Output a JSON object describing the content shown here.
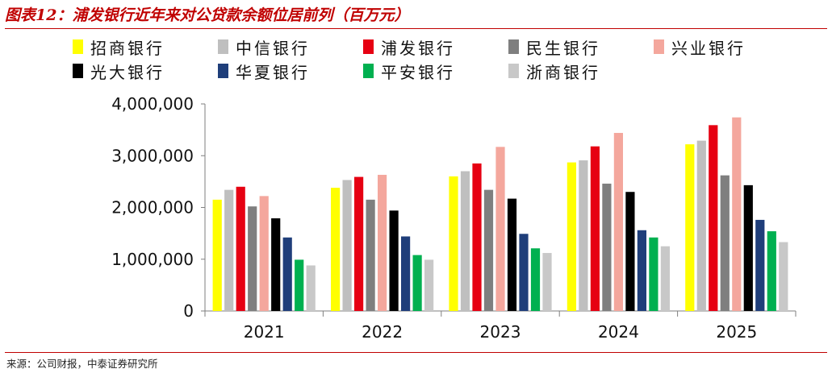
{
  "figure": {
    "label": "图表12：",
    "title": "浦发银行近年来对公贷款余额位居前列（百万元）"
  },
  "source": "来源：公司财报，中泰证券研究所",
  "colors": {
    "title": "#c00000",
    "rule": "#c00000",
    "axis": "#7f7f7f"
  },
  "chart_data": {
    "type": "bar",
    "title": "",
    "xlabel": "",
    "ylabel": "",
    "categories": [
      "2021",
      "2022",
      "2023",
      "2024",
      "2025"
    ],
    "ylim": [
      0,
      4000000
    ],
    "yticks": [
      0,
      1000000,
      2000000,
      3000000,
      4000000
    ],
    "ytick_labels": [
      "0",
      "1,000,000",
      "2,000,000",
      "3,000,000",
      "4,000,000"
    ],
    "grid": false,
    "legend_position": "top",
    "series": [
      {
        "name": "招商银行",
        "color": "#ffff00",
        "values": [
          2150000,
          2380000,
          2600000,
          2870000,
          3220000
        ]
      },
      {
        "name": "中信银行",
        "color": "#bfbfbf",
        "values": [
          2340000,
          2530000,
          2700000,
          2910000,
          3290000
        ]
      },
      {
        "name": "浦发银行",
        "color": "#e60012",
        "values": [
          2400000,
          2590000,
          2850000,
          3180000,
          3590000
        ]
      },
      {
        "name": "民生银行",
        "color": "#7f7f7f",
        "values": [
          2020000,
          2150000,
          2340000,
          2460000,
          2620000
        ]
      },
      {
        "name": "兴业银行",
        "color": "#f4a79d",
        "values": [
          2220000,
          2630000,
          3170000,
          3440000,
          3740000
        ]
      },
      {
        "name": "光大银行",
        "color": "#000000",
        "values": [
          1790000,
          1940000,
          2170000,
          2300000,
          2430000
        ]
      },
      {
        "name": "华夏银行",
        "color": "#1f3e7a",
        "values": [
          1420000,
          1440000,
          1490000,
          1560000,
          1760000
        ]
      },
      {
        "name": "平安银行",
        "color": "#00b050",
        "values": [
          990000,
          1080000,
          1210000,
          1420000,
          1540000
        ]
      },
      {
        "name": "浙商银行",
        "color": "#c8c8c8",
        "values": [
          880000,
          990000,
          1120000,
          1250000,
          1330000
        ]
      }
    ]
  }
}
